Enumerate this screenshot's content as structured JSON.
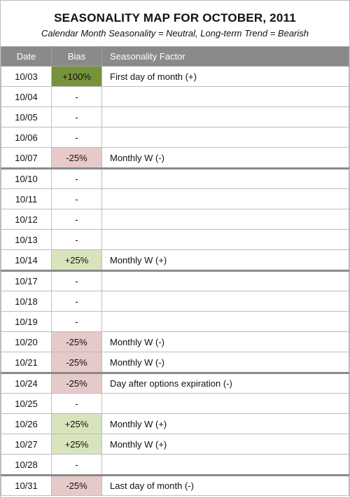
{
  "title": "SEASONALITY MAP FOR OCTOBER, 2011",
  "subtitle": "Calendar Month Seasonality = Neutral, Long-term Trend = Bearish",
  "colors": {
    "header_bg": "#8a8a8a",
    "strong_positive": "#76933c",
    "positive": "#d8e4bc",
    "negative": "#e6c9c9"
  },
  "columns": [
    "Date",
    "Bias",
    "Seasonality Factor"
  ],
  "rows": [
    {
      "date": "10/03",
      "bias": "+100%",
      "factor": "First day of month (+)",
      "tone": "pos-strong",
      "week_start": false
    },
    {
      "date": "10/04",
      "bias": "-",
      "factor": "",
      "tone": "",
      "week_start": false
    },
    {
      "date": "10/05",
      "bias": "-",
      "factor": "",
      "tone": "",
      "week_start": false
    },
    {
      "date": "10/06",
      "bias": "-",
      "factor": "",
      "tone": "",
      "week_start": false
    },
    {
      "date": "10/07",
      "bias": "-25%",
      "factor": "Monthly W (-)",
      "tone": "neg",
      "week_start": false
    },
    {
      "date": "10/10",
      "bias": "-",
      "factor": "",
      "tone": "",
      "week_start": true
    },
    {
      "date": "10/11",
      "bias": "-",
      "factor": "",
      "tone": "",
      "week_start": false
    },
    {
      "date": "10/12",
      "bias": "-",
      "factor": "",
      "tone": "",
      "week_start": false
    },
    {
      "date": "10/13",
      "bias": "-",
      "factor": "",
      "tone": "",
      "week_start": false
    },
    {
      "date": "10/14",
      "bias": "+25%",
      "factor": "Monthly W (+)",
      "tone": "pos",
      "week_start": false
    },
    {
      "date": "10/17",
      "bias": "-",
      "factor": "",
      "tone": "",
      "week_start": true
    },
    {
      "date": "10/18",
      "bias": "-",
      "factor": "",
      "tone": "",
      "week_start": false
    },
    {
      "date": "10/19",
      "bias": "-",
      "factor": "",
      "tone": "",
      "week_start": false
    },
    {
      "date": "10/20",
      "bias": "-25%",
      "factor": "Monthly W (-)",
      "tone": "neg",
      "week_start": false
    },
    {
      "date": "10/21",
      "bias": "-25%",
      "factor": "Monthly W (-)",
      "tone": "neg",
      "week_start": false
    },
    {
      "date": "10/24",
      "bias": "-25%",
      "factor": "Day after options expiration (-)",
      "tone": "neg",
      "week_start": true
    },
    {
      "date": "10/25",
      "bias": "-",
      "factor": "",
      "tone": "",
      "week_start": false
    },
    {
      "date": "10/26",
      "bias": "+25%",
      "factor": "Monthly W (+)",
      "tone": "pos",
      "week_start": false
    },
    {
      "date": "10/27",
      "bias": "+25%",
      "factor": "Monthly W (+)",
      "tone": "pos",
      "week_start": false
    },
    {
      "date": "10/28",
      "bias": "-",
      "factor": "",
      "tone": "",
      "week_start": false
    },
    {
      "date": "10/31",
      "bias": "-25%",
      "factor": "Last day of month (-)",
      "tone": "neg",
      "week_start": true
    }
  ]
}
